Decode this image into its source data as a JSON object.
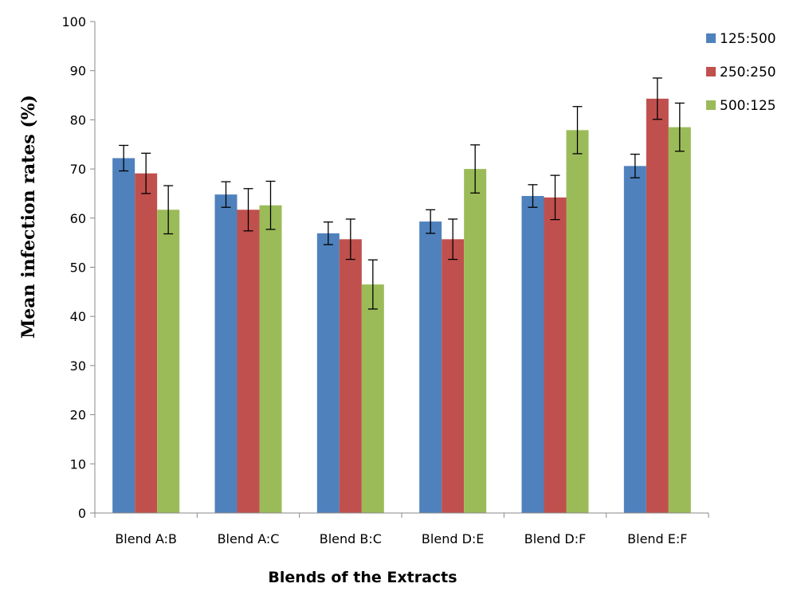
{
  "chart_data": {
    "type": "bar",
    "title": "",
    "xlabel": "Blends of the Extracts",
    "ylabel": "Mean infection rates (%)",
    "ylim": [
      0,
      100
    ],
    "yticks": [
      0,
      10,
      20,
      30,
      40,
      50,
      60,
      70,
      80,
      90,
      100
    ],
    "grid": false,
    "legend_position": "top-right",
    "categories": [
      "Blend A:B",
      "Blend A:C",
      "Blend B:C",
      "Blend D:E",
      "Blend D:F",
      "Blend E:F"
    ],
    "series": [
      {
        "name": "125:500",
        "color": "#4F81BD",
        "values": [
          72.2,
          64.8,
          56.9,
          59.3,
          64.5,
          70.6
        ],
        "errors": [
          2.6,
          2.6,
          2.3,
          2.4,
          2.3,
          2.4
        ]
      },
      {
        "name": "250:250",
        "color": "#C0504D",
        "values": [
          69.1,
          61.7,
          55.7,
          55.7,
          64.2,
          84.3
        ],
        "errors": [
          4.1,
          4.3,
          4.1,
          4.1,
          4.5,
          4.2
        ]
      },
      {
        "name": "500:125",
        "color": "#9BBB59",
        "values": [
          61.7,
          62.6,
          46.5,
          70.0,
          77.9,
          78.5
        ],
        "errors": [
          4.9,
          4.9,
          5.0,
          4.9,
          4.8,
          4.9
        ]
      }
    ]
  }
}
